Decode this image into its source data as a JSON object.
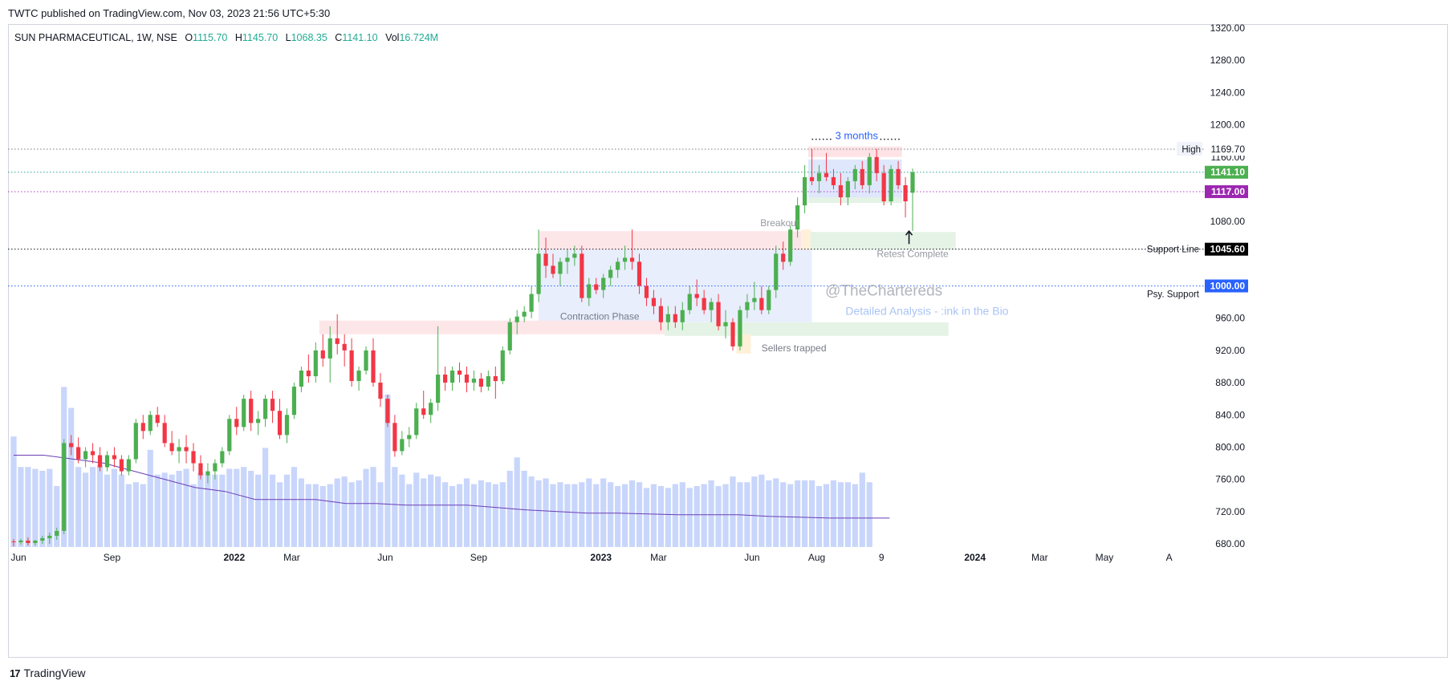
{
  "header": {
    "published": "TWTC published on TradingView.com, Nov 03, 2023 21:56 UTC+5:30"
  },
  "legend": {
    "symbol": "SUN PHARMACEUTICAL, 1W, NSE",
    "o_label": "O",
    "o": "1115.70",
    "h_label": "H",
    "h": "1145.70",
    "l_label": "L",
    "l": "1068.35",
    "c_label": "C",
    "c": "1141.10",
    "vol_label": "Vol",
    "vol": "16.724M"
  },
  "footer": {
    "brand": "TradingView",
    "logo": "17"
  },
  "chart_data": {
    "type": "candlestick",
    "symbol": "SUN PHARMACEUTICAL",
    "interval": "1W",
    "exchange": "NSE",
    "ylim": [
      680,
      1320
    ],
    "y_ticks": [
      680,
      720,
      760,
      800,
      840,
      880,
      920,
      960,
      1000,
      1040,
      1080,
      1120,
      1160,
      1200,
      1240,
      1280,
      1320
    ],
    "y_tick_labels": [
      "680.00",
      "720.00",
      "760.00",
      "800.00",
      "840.00",
      "880.00",
      "920.00",
      "960.00",
      "1000.00",
      "",
      "1080.00",
      "",
      "1160.00",
      "1200.00",
      "1240.00",
      "1280.00",
      "1320.00"
    ],
    "x_tick_labels": [
      {
        "label": "Jun",
        "index": 0,
        "bold": false
      },
      {
        "label": "Sep",
        "index": 13,
        "bold": false
      },
      {
        "label": "2022",
        "index": 30,
        "bold": true
      },
      {
        "label": "Mar",
        "index": 38,
        "bold": false
      },
      {
        "label": "Jun",
        "index": 51,
        "bold": false
      },
      {
        "label": "Sep",
        "index": 64,
        "bold": false
      },
      {
        "label": "2023",
        "index": 81,
        "bold": true
      },
      {
        "label": "Mar",
        "index": 89,
        "bold": false
      },
      {
        "label": "Jun",
        "index": 102,
        "bold": false
      },
      {
        "label": "Aug",
        "index": 111,
        "bold": false
      },
      {
        "label": "9",
        "index": 120,
        "bold": false
      },
      {
        "label": "2024",
        "index": 133,
        "bold": true
      },
      {
        "label": "Mar",
        "index": 142,
        "bold": false
      },
      {
        "label": "May",
        "index": 151,
        "bold": false
      },
      {
        "label": "A",
        "index": 160,
        "bold": false
      }
    ],
    "candles": [
      [
        683,
        686,
        677,
        682
      ],
      [
        682,
        686,
        679,
        684
      ],
      [
        684,
        688,
        678,
        681
      ],
      [
        681,
        685,
        678,
        684
      ],
      [
        684,
        690,
        680,
        687
      ],
      [
        687,
        694,
        680,
        690
      ],
      [
        690,
        700,
        685,
        696
      ],
      [
        696,
        810,
        692,
        805
      ],
      [
        805,
        815,
        790,
        800
      ],
      [
        800,
        812,
        780,
        785
      ],
      [
        785,
        800,
        775,
        795
      ],
      [
        795,
        805,
        780,
        790
      ],
      [
        790,
        800,
        770,
        775
      ],
      [
        775,
        795,
        770,
        790
      ],
      [
        790,
        800,
        775,
        785
      ],
      [
        785,
        790,
        765,
        770
      ],
      [
        770,
        790,
        765,
        785
      ],
      [
        785,
        835,
        780,
        830
      ],
      [
        830,
        840,
        810,
        820
      ],
      [
        820,
        845,
        815,
        840
      ],
      [
        840,
        850,
        825,
        830
      ],
      [
        830,
        840,
        800,
        805
      ],
      [
        805,
        820,
        790,
        795
      ],
      [
        795,
        810,
        780,
        800
      ],
      [
        800,
        815,
        780,
        795
      ],
      [
        795,
        805,
        770,
        780
      ],
      [
        780,
        790,
        760,
        765
      ],
      [
        765,
        780,
        755,
        770
      ],
      [
        770,
        785,
        760,
        780
      ],
      [
        780,
        800,
        775,
        795
      ],
      [
        795,
        840,
        790,
        835
      ],
      [
        835,
        850,
        815,
        825
      ],
      [
        825,
        865,
        820,
        860
      ],
      [
        860,
        870,
        820,
        830
      ],
      [
        830,
        845,
        815,
        835
      ],
      [
        835,
        865,
        825,
        860
      ],
      [
        860,
        870,
        830,
        845
      ],
      [
        845,
        860,
        810,
        815
      ],
      [
        815,
        848,
        805,
        840
      ],
      [
        840,
        880,
        835,
        875
      ],
      [
        875,
        900,
        868,
        895
      ],
      [
        895,
        915,
        880,
        888
      ],
      [
        888,
        930,
        880,
        920
      ],
      [
        920,
        940,
        900,
        910
      ],
      [
        910,
        950,
        880,
        935
      ],
      [
        935,
        965,
        915,
        928
      ],
      [
        928,
        940,
        900,
        920
      ],
      [
        920,
        935,
        875,
        882
      ],
      [
        882,
        900,
        870,
        895
      ],
      [
        895,
        925,
        890,
        920
      ],
      [
        920,
        935,
        875,
        880
      ],
      [
        880,
        892,
        850,
        860
      ],
      [
        860,
        865,
        825,
        830
      ],
      [
        830,
        840,
        788,
        795
      ],
      [
        795,
        820,
        790,
        810
      ],
      [
        810,
        825,
        800,
        815
      ],
      [
        815,
        855,
        810,
        848
      ],
      [
        848,
        870,
        835,
        840
      ],
      [
        840,
        860,
        830,
        855
      ],
      [
        855,
        950,
        845,
        890
      ],
      [
        890,
        900,
        870,
        880
      ],
      [
        880,
        900,
        870,
        895
      ],
      [
        895,
        905,
        880,
        890
      ],
      [
        890,
        900,
        868,
        880
      ],
      [
        880,
        895,
        870,
        885
      ],
      [
        885,
        892,
        868,
        875
      ],
      [
        875,
        895,
        870,
        888
      ],
      [
        888,
        900,
        860,
        882
      ],
      [
        882,
        925,
        878,
        920
      ],
      [
        920,
        960,
        915,
        955
      ],
      [
        955,
        970,
        940,
        962
      ],
      [
        962,
        975,
        955,
        968
      ],
      [
        968,
        1000,
        960,
        990
      ],
      [
        990,
        1070,
        980,
        1040
      ],
      [
        1040,
        1060,
        1010,
        1025
      ],
      [
        1025,
        1040,
        1010,
        1015
      ],
      [
        1015,
        1035,
        1000,
        1030
      ],
      [
        1030,
        1045,
        1015,
        1035
      ],
      [
        1035,
        1050,
        1025,
        1040
      ],
      [
        1040,
        1050,
        980,
        985
      ],
      [
        985,
        1010,
        975,
        1002
      ],
      [
        1002,
        1010,
        990,
        995
      ],
      [
        995,
        1015,
        985,
        1010
      ],
      [
        1010,
        1025,
        1000,
        1020
      ],
      [
        1020,
        1035,
        1010,
        1030
      ],
      [
        1030,
        1050,
        1020,
        1035
      ],
      [
        1035,
        1070,
        1020,
        1030
      ],
      [
        1030,
        1040,
        990,
        1000
      ],
      [
        1000,
        1010,
        975,
        985
      ],
      [
        985,
        995,
        965,
        975
      ],
      [
        975,
        985,
        945,
        955
      ],
      [
        955,
        975,
        945,
        965
      ],
      [
        965,
        975,
        948,
        955
      ],
      [
        955,
        980,
        945,
        970
      ],
      [
        970,
        1000,
        965,
        990
      ],
      [
        990,
        1008,
        975,
        985
      ],
      [
        985,
        995,
        965,
        970
      ],
      [
        970,
        985,
        955,
        980
      ],
      [
        980,
        990,
        945,
        950
      ],
      [
        950,
        970,
        935,
        955
      ],
      [
        955,
        960,
        920,
        925
      ],
      [
        925,
        975,
        920,
        970
      ],
      [
        970,
        990,
        960,
        980
      ],
      [
        980,
        1005,
        970,
        985
      ],
      [
        985,
        1000,
        965,
        970
      ],
      [
        970,
        1000,
        965,
        995
      ],
      [
        995,
        1050,
        985,
        1040
      ],
      [
        1040,
        1055,
        1020,
        1030
      ],
      [
        1030,
        1075,
        1025,
        1070
      ],
      [
        1070,
        1110,
        1060,
        1100
      ],
      [
        1100,
        1150,
        1090,
        1135
      ],
      [
        1135,
        1170,
        1125,
        1130
      ],
      [
        1130,
        1150,
        1115,
        1140
      ],
      [
        1140,
        1165,
        1130,
        1135
      ],
      [
        1135,
        1145,
        1120,
        1125
      ],
      [
        1125,
        1140,
        1100,
        1110
      ],
      [
        1110,
        1135,
        1100,
        1130
      ],
      [
        1130,
        1150,
        1120,
        1145
      ],
      [
        1145,
        1155,
        1120,
        1125
      ],
      [
        1125,
        1165,
        1115,
        1160
      ],
      [
        1160,
        1170,
        1130,
        1140
      ],
      [
        1140,
        1150,
        1100,
        1105
      ],
      [
        1105,
        1150,
        1100,
        1145
      ],
      [
        1145,
        1155,
        1120,
        1125
      ],
      [
        1125,
        1135,
        1085,
        1105
      ],
      [
        1115.7,
        1145.7,
        1068.35,
        1141.1
      ]
    ],
    "volume_scale_max": 850,
    "volume": [
      580,
      420,
      420,
      410,
      400,
      410,
      320,
      840,
      730,
      420,
      390,
      420,
      430,
      380,
      410,
      380,
      330,
      340,
      330,
      510,
      380,
      390,
      380,
      400,
      410,
      330,
      390,
      380,
      380,
      380,
      410,
      410,
      420,
      400,
      380,
      520,
      380,
      340,
      380,
      420,
      360,
      330,
      330,
      320,
      330,
      360,
      370,
      340,
      350,
      410,
      420,
      340,
      800,
      420,
      380,
      330,
      390,
      360,
      380,
      370,
      340,
      320,
      330,
      360,
      330,
      350,
      340,
      330,
      340,
      400,
      470,
      400,
      370,
      350,
      360,
      330,
      340,
      330,
      330,
      340,
      360,
      330,
      360,
      340,
      320,
      330,
      350,
      340,
      310,
      330,
      320,
      310,
      330,
      340,
      310,
      320,
      330,
      350,
      320,
      330,
      370,
      340,
      340,
      370,
      380,
      350,
      360,
      340,
      330,
      350,
      350,
      350,
      320,
      330,
      350,
      340,
      340,
      330,
      390,
      340
    ],
    "ma_line": [
      790,
      790,
      785,
      780,
      770,
      760,
      750,
      745,
      735,
      735,
      735,
      730,
      730,
      728,
      728,
      728,
      725,
      722,
      720,
      718,
      718,
      717,
      716,
      716,
      716,
      714,
      713,
      712,
      712,
      712
    ],
    "horizontal_lines": [
      {
        "value": 1169.7,
        "label": "1169.70",
        "tag": "High",
        "color": "#787b86",
        "style": "dotted"
      },
      {
        "value": 1141.1,
        "label": "1141.10",
        "color": "#22ab94",
        "style": "dotted",
        "fill": "#4caf50"
      },
      {
        "value": 1117.0,
        "label": "1117.00",
        "color": "#b341c9",
        "style": "dotted",
        "fill": "#9c27b0"
      },
      {
        "value": 1045.6,
        "label": "1045.60",
        "tag": "Support Line",
        "color": "#131722",
        "style": "dotted",
        "fill": "#000000"
      },
      {
        "value": 1000.0,
        "label": "1000.00",
        "tag": "Psy. Support",
        "color": "#2962ff",
        "style": "dotted",
        "fill": "#2962ff"
      }
    ],
    "annotations": [
      {
        "text": "3 months",
        "color": "#2962ff"
      },
      {
        "text": "Breakout",
        "color": "#9598a1"
      },
      {
        "text": "Retest Complete",
        "color": "#9598a1"
      },
      {
        "text": "Contraction Phase",
        "color": "#787b86"
      },
      {
        "text": "Sellers trapped",
        "color": "#787b86"
      },
      {
        "text": "@TheChartereds",
        "color": "#b2b5be"
      },
      {
        "text": "Detailed Analysis - :ink in the Bio",
        "color": "#a9c4f5"
      }
    ],
    "colors": {
      "up": "#4caf50",
      "down": "#f23645",
      "volume": "#c9d6fb",
      "ma": "#6a3fb5"
    }
  }
}
